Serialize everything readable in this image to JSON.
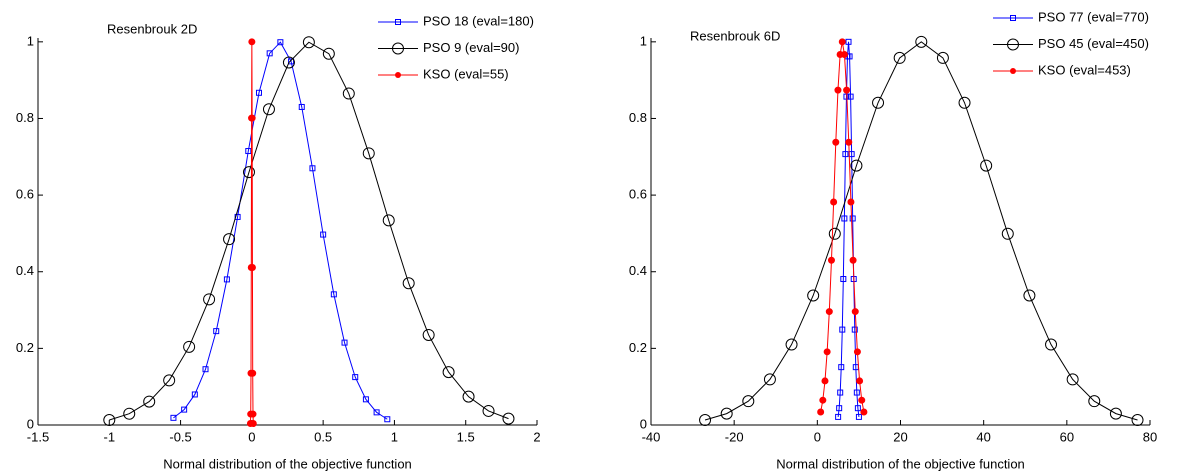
{
  "chart_data": [
    {
      "type": "line",
      "title": "Resenbrouk 2D",
      "xlabel": "Normal distribution of the objective function",
      "xlim": [
        -1.5,
        2
      ],
      "ylim": [
        0,
        1.01
      ],
      "xticks": [
        -1.5,
        -1,
        -0.5,
        0,
        0.5,
        1,
        1.5,
        2
      ],
      "yticks": [
        0,
        0.2,
        0.4,
        0.6,
        0.8,
        1
      ],
      "legend": "top-right",
      "series": [
        {
          "name": "PSO 18 (eval=180)",
          "color": "#0000ff",
          "marker": "square",
          "x": [
            -0.55,
            -0.475,
            -0.4,
            -0.325,
            -0.25,
            -0.175,
            -0.1,
            -0.025,
            0.05,
            0.125,
            0.2,
            0.275,
            0.35,
            0.425,
            0.5,
            0.575,
            0.65,
            0.725,
            0.8,
            0.875,
            0.95
          ],
          "values": [
            0.0187,
            0.0402,
            0.0797,
            0.1456,
            0.245,
            0.38,
            0.543,
            0.715,
            0.867,
            0.97,
            0.999,
            0.949,
            0.83,
            0.67,
            0.497,
            0.341,
            0.215,
            0.125,
            0.067,
            0.033,
            0.015
          ]
        },
        {
          "name": "PSO 9 (eval=90)",
          "color": "#000000",
          "marker": "circle",
          "x": [
            -1.0,
            -0.86,
            -0.72,
            -0.58,
            -0.44,
            -0.3,
            -0.16,
            -0.02,
            0.12,
            0.26,
            0.4,
            0.54,
            0.68,
            0.82,
            0.96,
            1.1,
            1.24,
            1.38,
            1.52,
            1.66,
            1.8
          ],
          "values": [
            0.0131,
            0.0295,
            0.0611,
            0.1164,
            0.204,
            0.328,
            0.485,
            0.66,
            0.824,
            0.946,
            0.999,
            0.969,
            0.865,
            0.709,
            0.534,
            0.37,
            0.235,
            0.138,
            0.074,
            0.0367,
            0.0167
          ]
        },
        {
          "name": "KSO (eval=55)",
          "color": "#ff0000",
          "marker": "dot",
          "x": [
            -0.01,
            -0.008,
            -0.006,
            -0.004,
            -0.002,
            0,
            0.002,
            0.004,
            0.006,
            0.008,
            0.01
          ],
          "values": [
            0.0039,
            0.0285,
            0.135,
            0.411,
            0.801,
            1,
            0.801,
            0.411,
            0.135,
            0.0285,
            0.0039
          ]
        }
      ]
    },
    {
      "type": "line",
      "title": "Resenbrouk 6D",
      "xlabel": "Normal distribution of the objective function",
      "xlim": [
        -40,
        80
      ],
      "ylim": [
        0,
        1.01
      ],
      "xticks": [
        -40,
        -20,
        0,
        20,
        40,
        60,
        80
      ],
      "yticks": [
        0,
        0.2,
        0.4,
        0.6,
        0.8,
        1
      ],
      "legend": "top-right",
      "series": [
        {
          "name": "PSO 77 (eval=770)",
          "color": "#0000ff",
          "marker": "square",
          "x": [
            5,
            5.25,
            5.5,
            5.75,
            6,
            6.25,
            6.5,
            6.75,
            7,
            7.25,
            7.5,
            7.75,
            8,
            8.25,
            8.5,
            8.75,
            9,
            9.25,
            9.5,
            9.75,
            10
          ],
          "values": [
            0.0211,
            0.0439,
            0.0847,
            0.151,
            0.249,
            0.381,
            0.539,
            0.707,
            0.857,
            0.962,
            1,
            0.962,
            0.857,
            0.707,
            0.539,
            0.381,
            0.249,
            0.151,
            0.0847,
            0.0439,
            0.0211
          ]
        },
        {
          "name": "PSO 45 (eval=450)",
          "color": "#000000",
          "marker": "circle",
          "x": [
            -27,
            -21.8,
            -16.6,
            -11.4,
            -6.2,
            -1,
            4.2,
            9.4,
            14.6,
            19.8,
            25,
            30.2,
            35.4,
            40.6,
            45.8,
            51,
            56.2,
            61.4,
            66.6,
            71.8,
            77
          ],
          "values": [
            0.013,
            0.0297,
            0.0622,
            0.119,
            0.21,
            0.338,
            0.499,
            0.677,
            0.841,
            0.958,
            1,
            0.958,
            0.841,
            0.677,
            0.499,
            0.338,
            0.21,
            0.119,
            0.0622,
            0.0297,
            0.013
          ]
        },
        {
          "name": "KSO (eval=453)",
          "color": "#ff0000",
          "marker": "dot",
          "x": [
            0.8,
            1.32,
            1.84,
            2.36,
            2.88,
            3.4,
            3.92,
            4.44,
            4.96,
            5.48,
            6,
            6.52,
            7.04,
            7.56,
            8.08,
            8.6,
            9.12,
            9.64,
            10.16,
            10.68,
            11.2
          ],
          "values": [
            0.034,
            0.0647,
            0.115,
            0.191,
            0.296,
            0.43,
            0.582,
            0.738,
            0.874,
            0.967,
            1,
            0.967,
            0.874,
            0.738,
            0.582,
            0.43,
            0.296,
            0.191,
            0.115,
            0.0647,
            0.034
          ]
        }
      ]
    }
  ]
}
